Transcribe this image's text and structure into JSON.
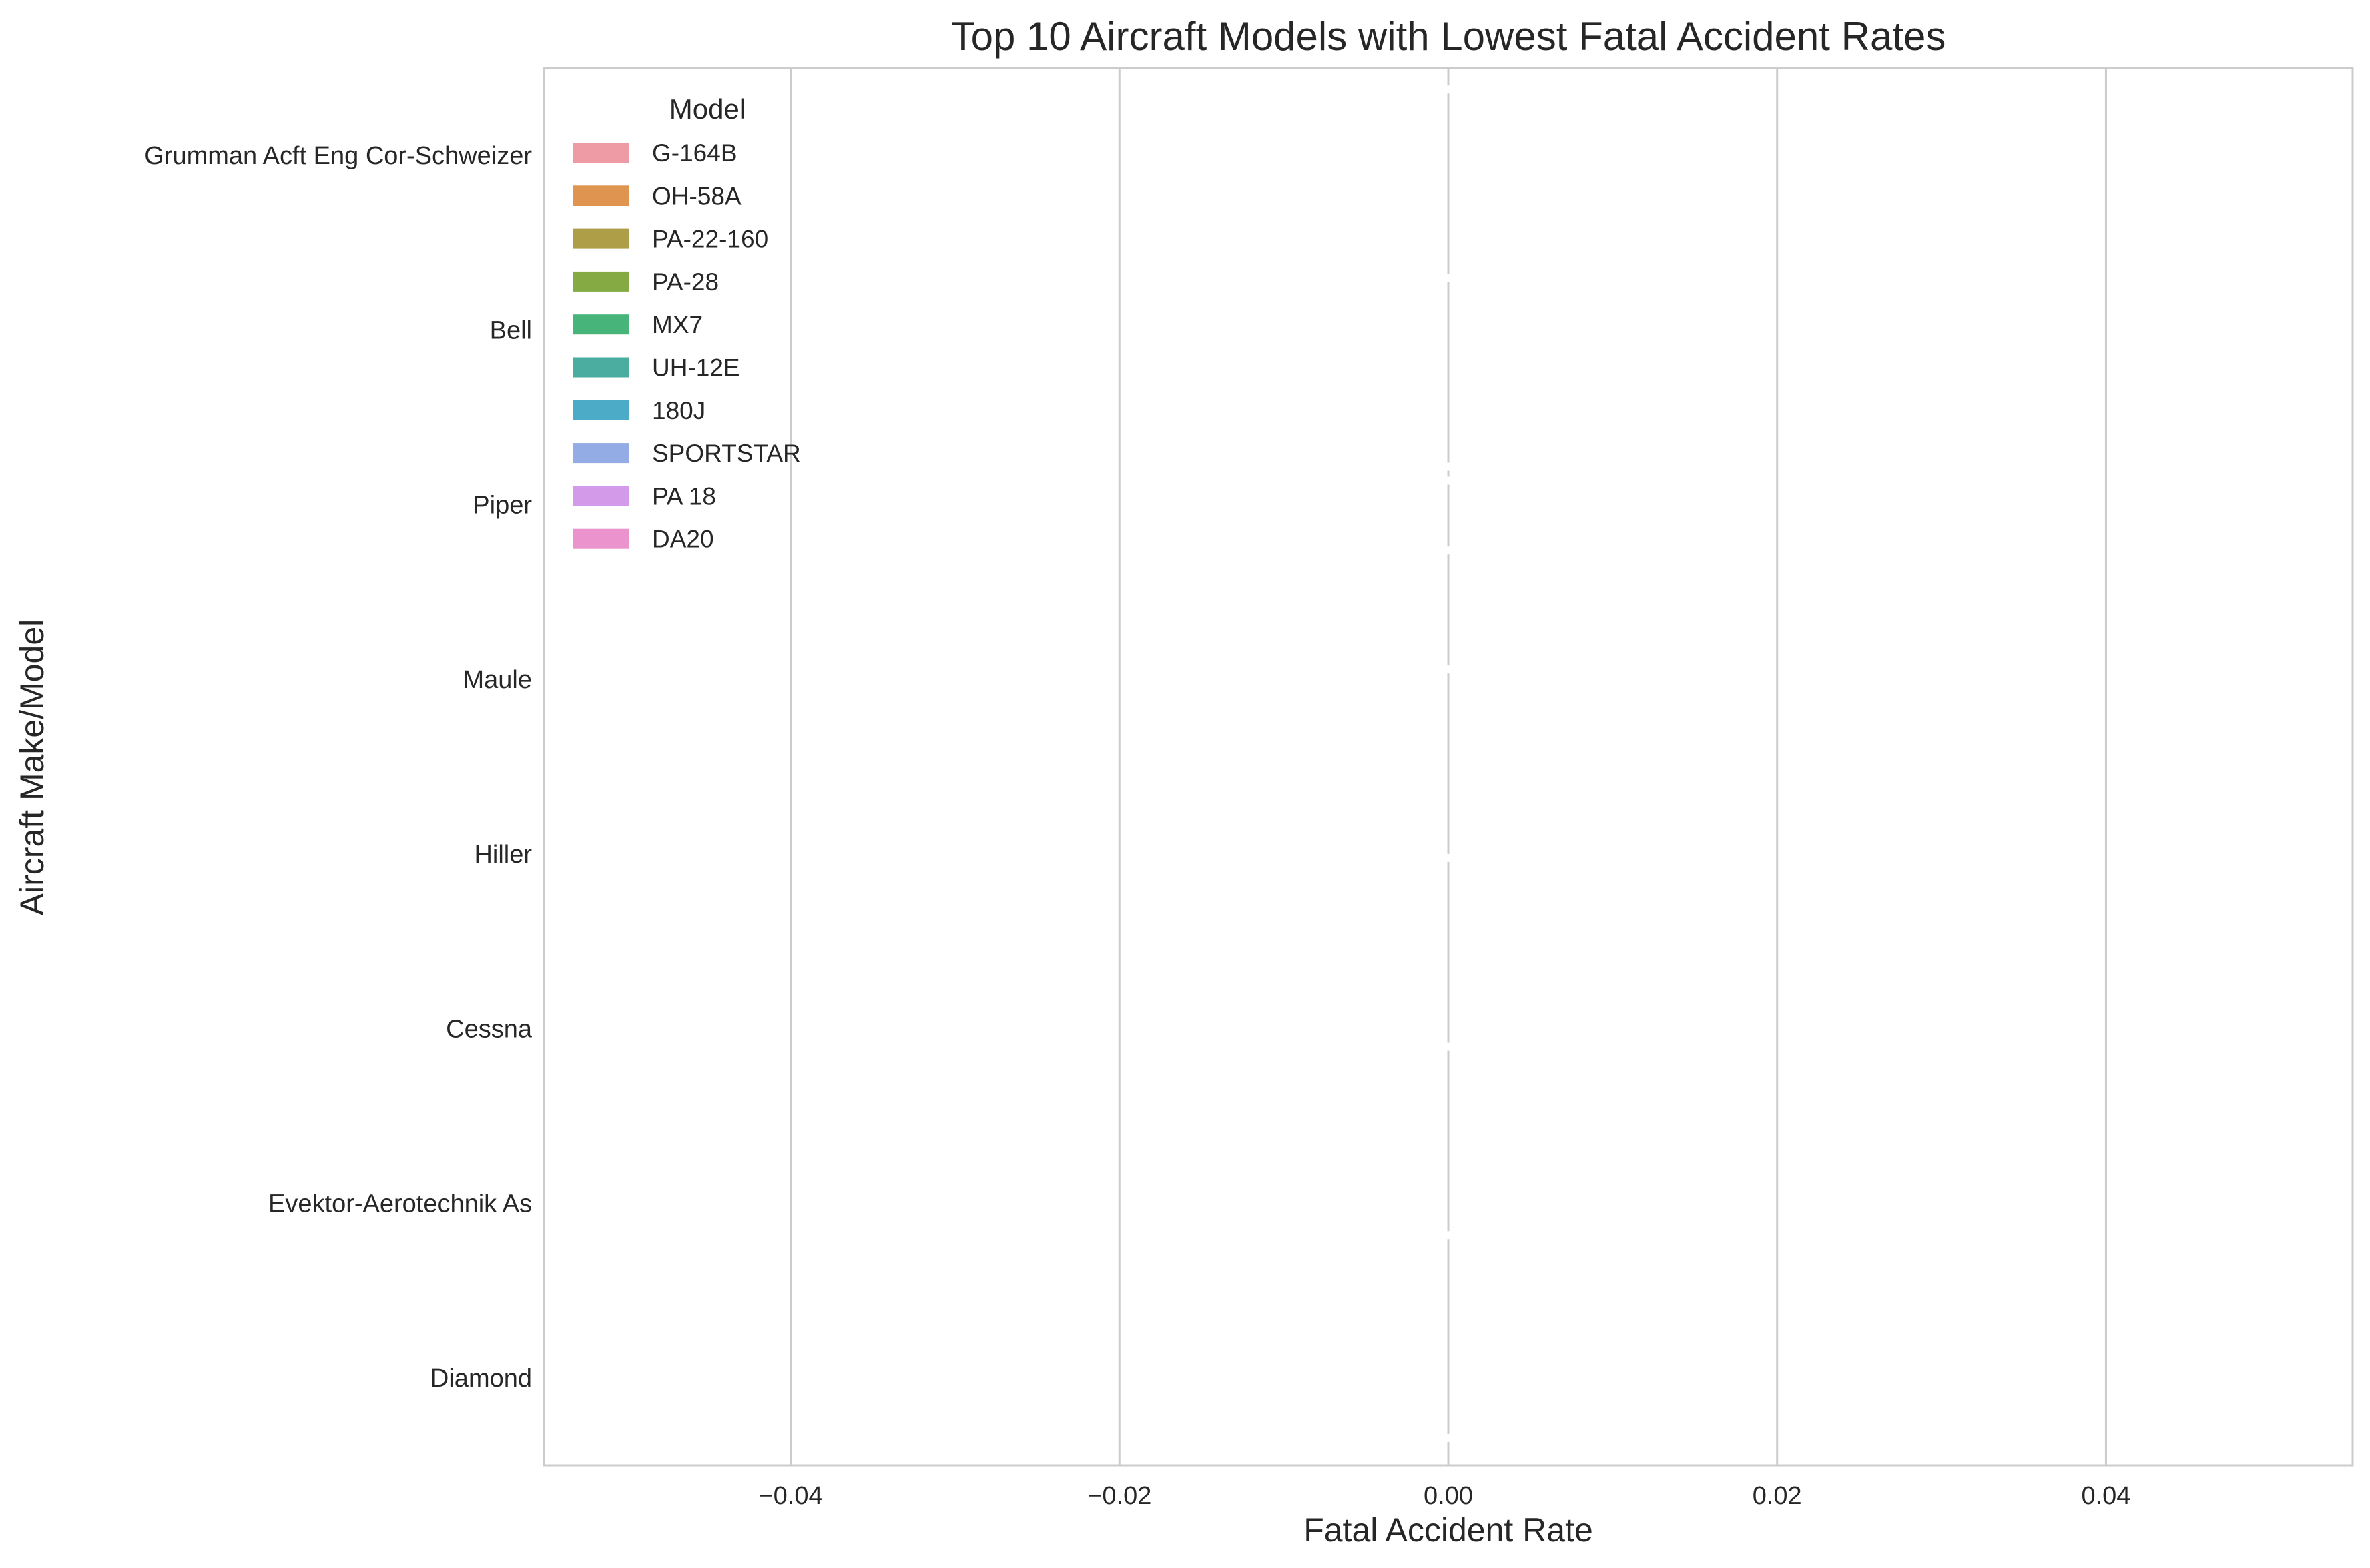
{
  "chart_data": {
    "type": "bar",
    "orientation": "horizontal",
    "title": "Top 10 Aircraft Models with Lowest Fatal Accident Rates",
    "xlabel": "Fatal Accident Rate",
    "ylabel": "Aircraft Make/Model",
    "categories": [
      "Grumman Acft Eng Cor-Schweizer",
      "Bell",
      "Piper",
      "Maule",
      "Hiller",
      "Cessna",
      "Evektor-Aerotechnik As",
      "Diamond"
    ],
    "xlim": [
      -0.055,
      0.055
    ],
    "xticks": [
      -0.04,
      -0.02,
      0.0,
      0.02,
      0.04
    ],
    "xtick_labels": [
      "−0.04",
      "−0.02",
      "0.00",
      "0.02",
      "0.04"
    ],
    "grid": true,
    "legend": {
      "title": "Model",
      "placement": "top-left",
      "entries": [
        {
          "name": "G-164B",
          "color": "#ee9ba6"
        },
        {
          "name": "OH-58A",
          "color": "#df9450"
        },
        {
          "name": "PA-22-160",
          "color": "#ad9e47"
        },
        {
          "name": "PA-28",
          "color": "#85aa44"
        },
        {
          "name": "MX7",
          "color": "#47b47a"
        },
        {
          "name": "UH-12E",
          "color": "#4aad9f"
        },
        {
          "name": "180J",
          "color": "#4cacc7"
        },
        {
          "name": "SPORTSTAR",
          "color": "#93ace6"
        },
        {
          "name": "PA 18",
          "color": "#d39aea"
        },
        {
          "name": "DA20",
          "color": "#ea93cc"
        }
      ]
    },
    "series": [
      {
        "name": "G-164B",
        "category": "Grumman Acft Eng Cor-Schweizer",
        "value": 0.0
      },
      {
        "name": "OH-58A",
        "category": "Bell",
        "value": 0.0
      },
      {
        "name": "PA-22-160",
        "category": "Piper",
        "value": 0.0
      },
      {
        "name": "PA-28",
        "category": "Piper",
        "value": 0.0
      },
      {
        "name": "MX7",
        "category": "Maule",
        "value": 0.0
      },
      {
        "name": "UH-12E",
        "category": "Hiller",
        "value": 0.0
      },
      {
        "name": "180J",
        "category": "Cessna",
        "value": 0.0
      },
      {
        "name": "SPORTSTAR",
        "category": "Evektor-Aerotechnik As",
        "value": 0.0
      },
      {
        "name": "PA 18",
        "category": "Piper",
        "value": 0.0
      },
      {
        "name": "DA20",
        "category": "Diamond",
        "value": 0.0
      }
    ]
  }
}
